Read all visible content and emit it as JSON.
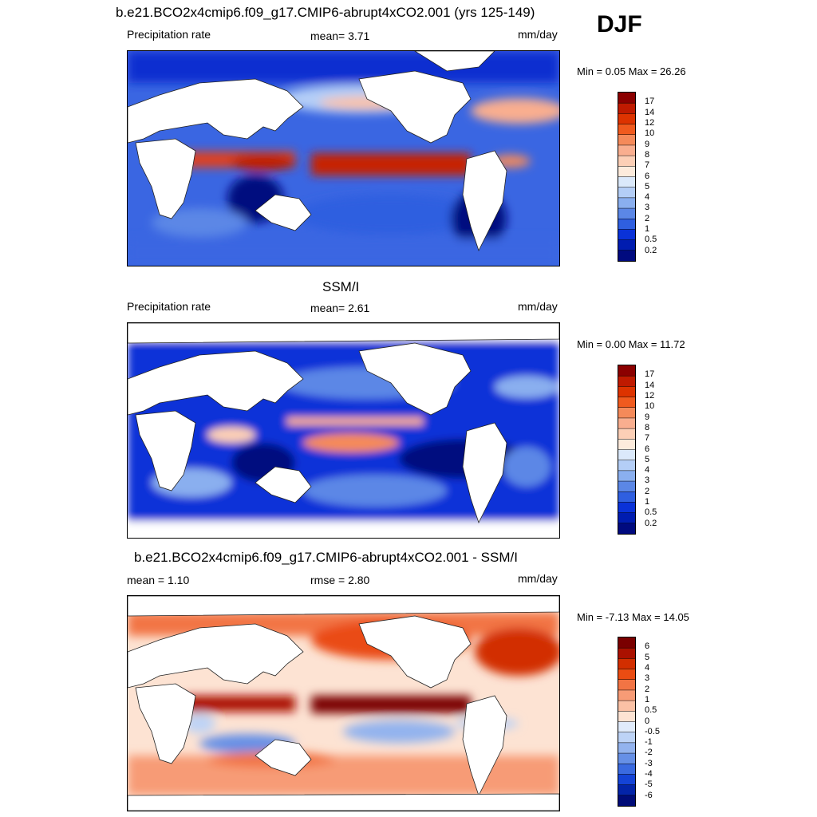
{
  "season_label": "DJF",
  "panels": [
    {
      "title": "b.e21.BCO2x4cmip6.f09_g17.CMIP6-abrupt4xCO2.001 (yrs 125-149)",
      "left_label": "Precipitation rate",
      "center_label": "mean=   3.71",
      "units": "mm/day",
      "minmax": "Min =   0.05 Max =  26.26",
      "colorbar_levels": [
        "17",
        "14",
        "12",
        "10",
        "9",
        "8",
        "7",
        "6",
        "5",
        "4",
        "3",
        "2",
        "1",
        "0.5",
        "0.2"
      ],
      "colorbar_colors": [
        "#8b0000",
        "#bf1a00",
        "#dd3300",
        "#f05a1e",
        "#f58a5a",
        "#f9ae8f",
        "#fccfb6",
        "#fdebdc",
        "#dbe9fb",
        "#b4cef7",
        "#8aafef",
        "#5b87e6",
        "#2f5fe0",
        "#0a32d8",
        "#001cb0",
        "#000a7f"
      ]
    },
    {
      "title": "SSM/I",
      "left_label": "Precipitation rate",
      "center_label": "mean=   2.61",
      "units": "mm/day",
      "minmax": "Min =   0.00 Max =  11.72",
      "colorbar_levels": [
        "17",
        "14",
        "12",
        "10",
        "9",
        "8",
        "7",
        "6",
        "5",
        "4",
        "3",
        "2",
        "1",
        "0.5",
        "0.2"
      ],
      "colorbar_colors": [
        "#8b0000",
        "#bf1a00",
        "#dd3300",
        "#f05a1e",
        "#f58a5a",
        "#f9ae8f",
        "#fccfb6",
        "#fdebdc",
        "#dbe9fb",
        "#b4cef7",
        "#8aafef",
        "#5b87e6",
        "#2f5fe0",
        "#0a32d8",
        "#001cb0",
        "#000a7f"
      ]
    },
    {
      "title": "b.e21.BCO2x4cmip6.f09_g17.CMIP6-abrupt4xCO2.001 - SSM/I",
      "left_label": "mean =   1.10",
      "center_label": "rmse =   2.80",
      "units": "mm/day",
      "minmax": "Min =  -7.13 Max =  14.05",
      "colorbar_levels": [
        "6",
        "5",
        "4",
        "3",
        "2",
        "1",
        "0.5",
        "0",
        "-0.5",
        "-1",
        "-2",
        "-3",
        "-4",
        "-5",
        "-6"
      ],
      "colorbar_colors": [
        "#7a0000",
        "#aa1100",
        "#d22e00",
        "#ea4c12",
        "#f27444",
        "#f79b76",
        "#fbc1a5",
        "#fde3d3",
        "#e0ebfb",
        "#bdd3f6",
        "#93b3ee",
        "#6690e6",
        "#3a6ae0",
        "#1443d6",
        "#0324a8",
        "#000c78"
      ]
    }
  ]
}
